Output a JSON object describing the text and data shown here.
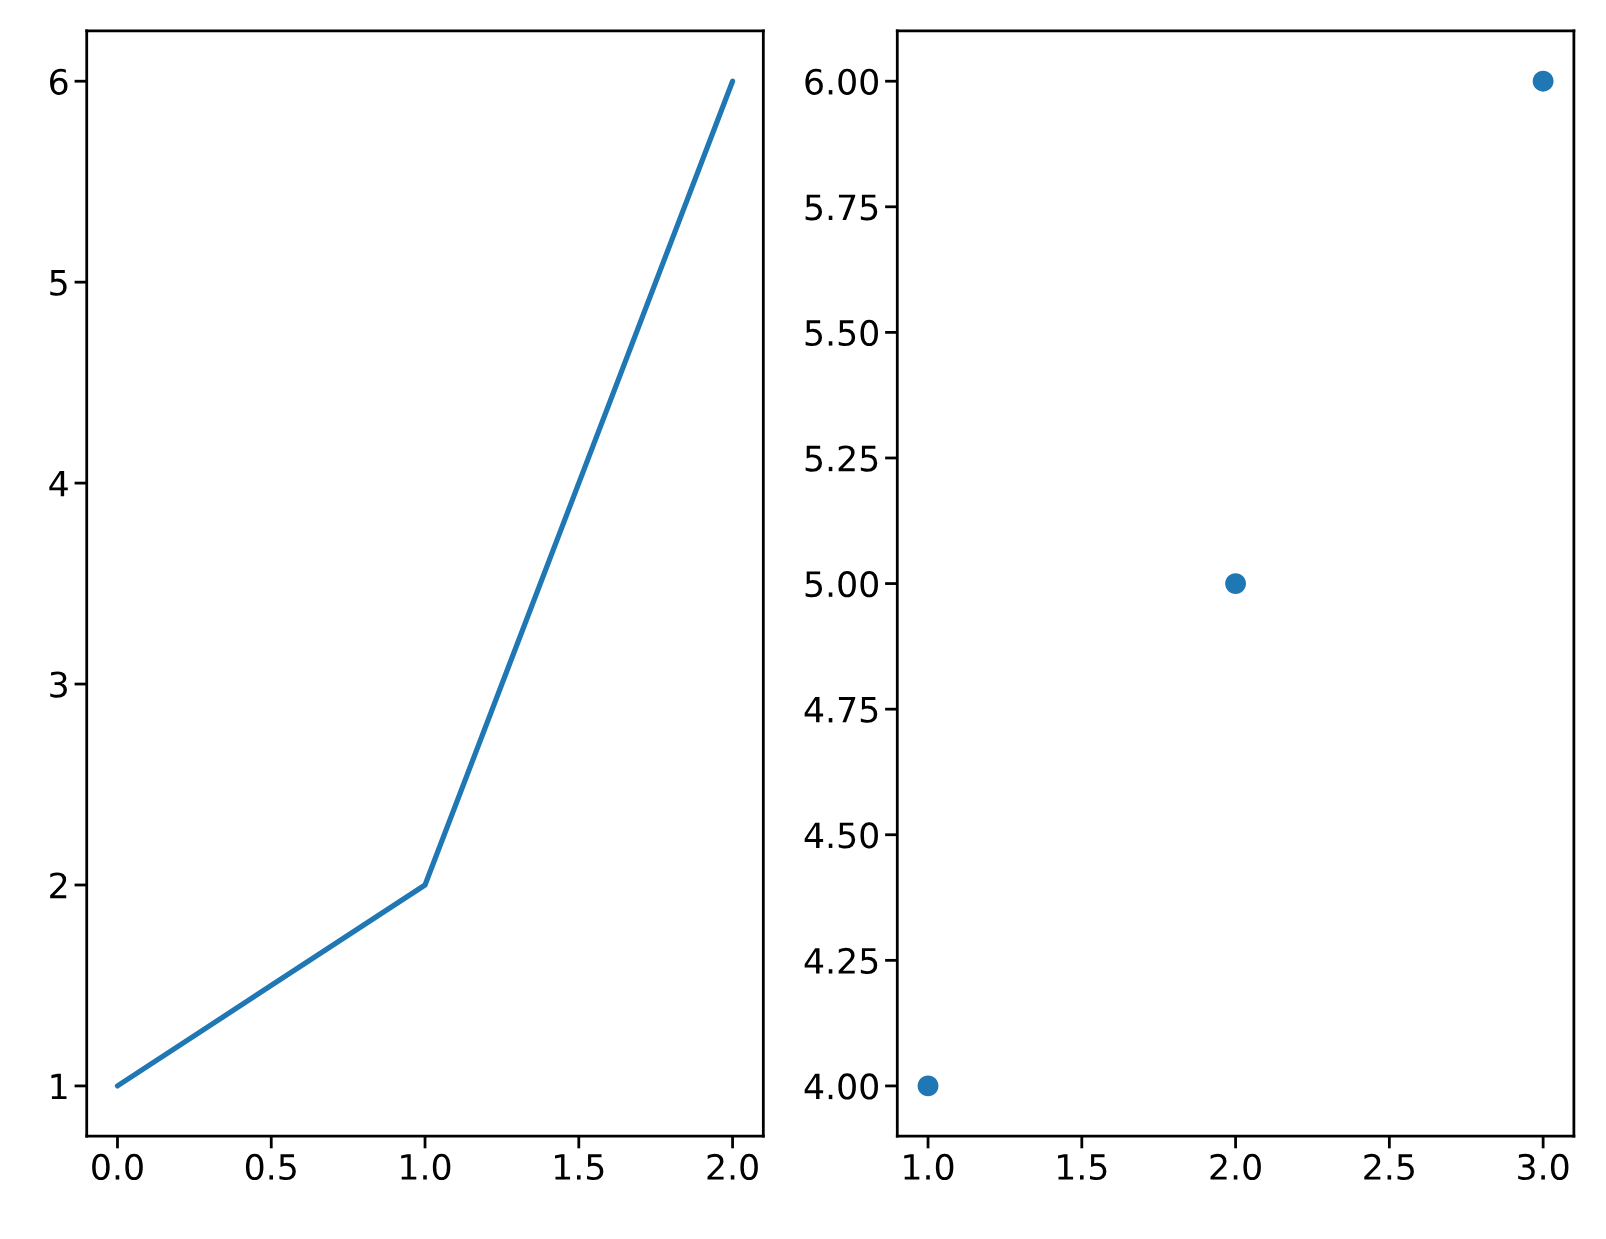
{
  "chart_data": [
    {
      "type": "line",
      "x": [
        0,
        1,
        2
      ],
      "series": [
        {
          "color": "#1f77b4",
          "values": [
            1,
            2,
            6
          ]
        }
      ],
      "xlim": [
        -0.1,
        2.1
      ],
      "ylim": [
        0.75,
        6.25
      ],
      "xticks": [
        {
          "value": 0,
          "label": "0.0"
        },
        {
          "value": 0.5,
          "label": "0.5"
        },
        {
          "value": 1,
          "label": "1.0"
        },
        {
          "value": 1.5,
          "label": "1.5"
        },
        {
          "value": 2,
          "label": "2.0"
        }
      ],
      "yticks": [
        1,
        2,
        3,
        4,
        5,
        6
      ],
      "grid": false,
      "marker": "none"
    },
    {
      "type": "scatter",
      "x": [
        1,
        2,
        3
      ],
      "series": [
        {
          "color": "#1f77b4",
          "values": [
            4,
            5,
            6
          ]
        }
      ],
      "xlim": [
        0.9,
        3.1
      ],
      "ylim": [
        3.9,
        6.1
      ],
      "xticks": [
        {
          "value": 1,
          "label": "1.0"
        },
        {
          "value": 1.5,
          "label": "1.5"
        },
        {
          "value": 2,
          "label": "2.0"
        },
        {
          "value": 2.5,
          "label": "2.5"
        },
        {
          "value": 3,
          "label": "3.0"
        }
      ],
      "yticks": [
        {
          "value": 4,
          "label": "4.00"
        },
        {
          "value": 4.25,
          "label": "4.25"
        },
        {
          "value": 4.5,
          "label": "4.50"
        },
        {
          "value": 4.75,
          "label": "4.75"
        },
        {
          "value": 5,
          "label": "5.00"
        },
        {
          "value": 5.25,
          "label": "5.25"
        },
        {
          "value": 5.5,
          "label": "5.50"
        },
        {
          "value": 5.75,
          "label": "5.75"
        },
        {
          "value": 6,
          "label": "6.00"
        }
      ],
      "grid": false,
      "marker": "circle"
    }
  ]
}
